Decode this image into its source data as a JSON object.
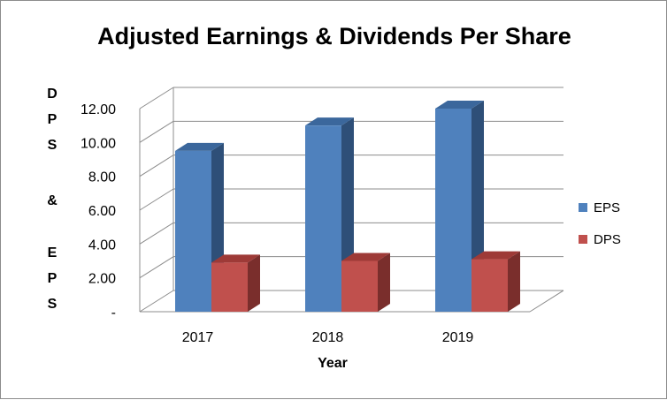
{
  "chart_data": {
    "type": "bar",
    "title": "Adjusted Earnings & Dividends Per Share",
    "xlabel": "Year",
    "ylabel_letters": [
      "D",
      "P",
      "S",
      "&",
      "E",
      "P",
      "S"
    ],
    "categories": [
      "2017",
      "2018",
      "2019"
    ],
    "series": [
      {
        "name": "EPS",
        "values": [
          9.5,
          11.0,
          12.0
        ],
        "color": "#4F81BD",
        "side_color": "#2E4F78",
        "top_color": "#3B679C"
      },
      {
        "name": "DPS",
        "values": [
          2.9,
          3.0,
          3.1
        ],
        "color": "#C0504D",
        "side_color": "#7A2E2C",
        "top_color": "#9E3A37"
      }
    ],
    "ylim": [
      0,
      12
    ],
    "yticks": [
      {
        "value": 0,
        "label": "-"
      },
      {
        "value": 2,
        "label": "2.00"
      },
      {
        "value": 4,
        "label": "4.00"
      },
      {
        "value": 6,
        "label": "6.00"
      },
      {
        "value": 8,
        "label": "8.00"
      },
      {
        "value": 10,
        "label": "10.00"
      },
      {
        "value": 12,
        "label": "12.00"
      }
    ],
    "grid": true,
    "style_3d": true,
    "legend_position": "right"
  }
}
